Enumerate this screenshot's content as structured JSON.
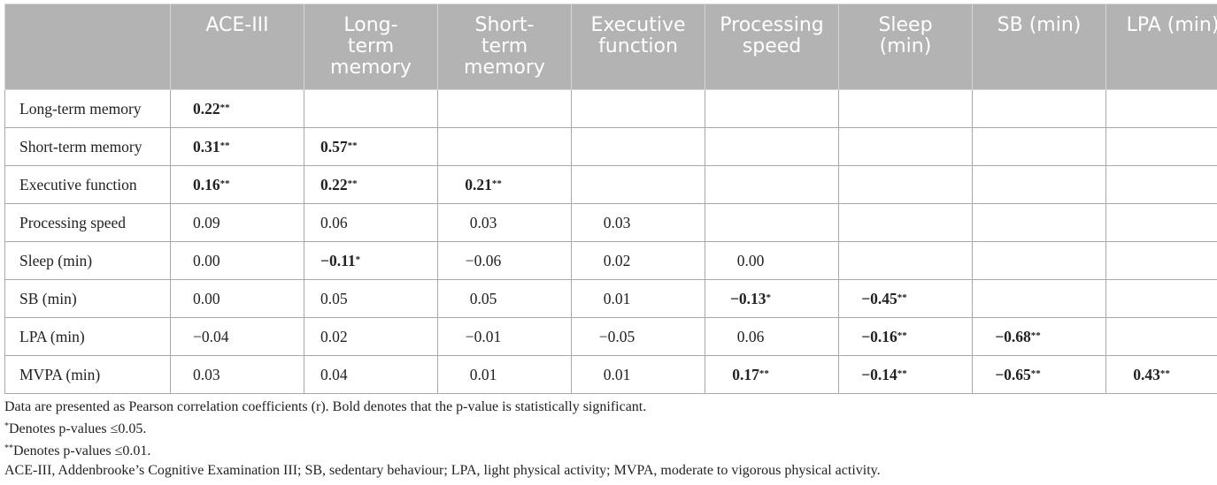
{
  "table": {
    "headers": [
      "",
      "ACE-III",
      "Long-\nterm\nmemory",
      "Short-\nterm\nmemory",
      "Executive\nfunction",
      "Processing\nspeed",
      "Sleep\n(min)",
      "SB (min)",
      "LPA (min)"
    ],
    "rows": [
      {
        "label": "Long-term memory",
        "cells": [
          {
            "v": "0.22",
            "s": "**",
            "b": true
          },
          null,
          null,
          null,
          null,
          null,
          null,
          null
        ]
      },
      {
        "label": "Short-term memory",
        "cells": [
          {
            "v": "0.31",
            "s": "**",
            "b": true
          },
          {
            "v": "0.57",
            "s": "**",
            "b": true
          },
          null,
          null,
          null,
          null,
          null,
          null
        ]
      },
      {
        "label": "Executive function",
        "cells": [
          {
            "v": "0.16",
            "s": "**",
            "b": true
          },
          {
            "v": "0.22",
            "s": "**",
            "b": true
          },
          {
            "v": "0.21",
            "s": "**",
            "b": true
          },
          null,
          null,
          null,
          null,
          null
        ]
      },
      {
        "label": "Processing speed",
        "cells": [
          {
            "v": "0.09"
          },
          {
            "v": "0.06"
          },
          {
            "v": "0.03"
          },
          {
            "v": "0.03"
          },
          null,
          null,
          null,
          null
        ]
      },
      {
        "label": "Sleep (min)",
        "cells": [
          {
            "v": "0.00"
          },
          {
            "v": "−0.11",
            "s": "*",
            "b": true
          },
          {
            "v": "−0.06"
          },
          {
            "v": "0.02"
          },
          {
            "v": "0.00"
          },
          null,
          null,
          null
        ]
      },
      {
        "label": "SB (min)",
        "cells": [
          {
            "v": "0.00"
          },
          {
            "v": "0.05"
          },
          {
            "v": "0.05"
          },
          {
            "v": "0.01"
          },
          {
            "v": "−0.13",
            "s": "*",
            "b": true
          },
          {
            "v": "−0.45",
            "s": "**",
            "b": true
          },
          null,
          null
        ]
      },
      {
        "label": "LPA (min)",
        "cells": [
          {
            "v": "−0.04"
          },
          {
            "v": "0.02"
          },
          {
            "v": "−0.01"
          },
          {
            "v": "−0.05"
          },
          {
            "v": "0.06"
          },
          {
            "v": "−0.16",
            "s": "**",
            "b": true
          },
          {
            "v": "−0.68",
            "s": "**",
            "b": true
          },
          null
        ]
      },
      {
        "label": "MVPA (min)",
        "cells": [
          {
            "v": "0.03"
          },
          {
            "v": "0.04"
          },
          {
            "v": "0.01"
          },
          {
            "v": "0.01"
          },
          {
            "v": "0.17",
            "s": "**",
            "b": true
          },
          {
            "v": "−0.14",
            "s": "**",
            "b": true
          },
          {
            "v": "−0.65",
            "s": "**",
            "b": true
          },
          {
            "v": "0.43",
            "s": "**",
            "b": true
          }
        ]
      }
    ]
  },
  "notes": {
    "line1": "Data are presented as Pearson correlation coefficients (r). Bold denotes that the p-value is statistically significant.",
    "line2_mark": "*",
    "line2": "Denotes p-values ≤0.05.",
    "line3_mark": "**",
    "line3": "Denotes p-values ≤0.01.",
    "line4": "ACE-III, Addenbrooke’s Cognitive Examination III; SB, sedentary behaviour; LPA, light physical activity; MVPA, moderate to vigorous physical activity."
  },
  "colors": {
    "header_bg": "#b3b3b3",
    "header_text": "#ffffff",
    "grid": "#a8a8a8"
  }
}
